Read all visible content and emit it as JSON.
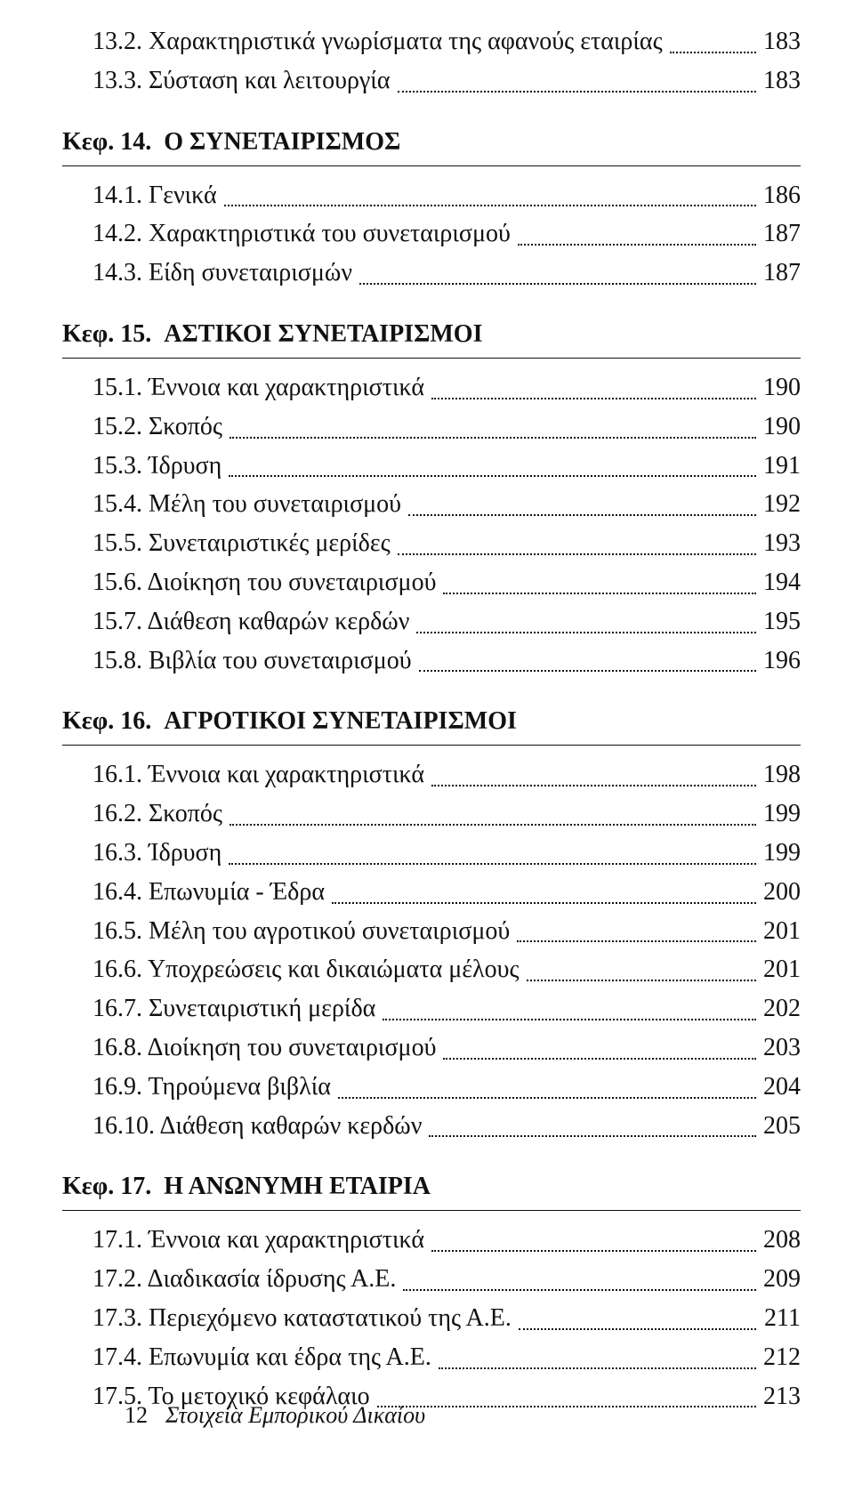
{
  "colors": {
    "text": "#111",
    "background": "#ffffff"
  },
  "typography": {
    "font_family": "Times New Roman",
    "body_fontsize": 28,
    "heading_fontsize": 28,
    "heading_weight": "bold"
  },
  "sections": [
    {
      "type": "entries",
      "entries": [
        {
          "label": "13.2. Χαρακτηριστικά γνωρίσματα της αφανούς εταιρίας",
          "page": "183"
        },
        {
          "label": "13.3. Σύσταση και λειτουργία",
          "page": "183"
        }
      ]
    },
    {
      "type": "chapter",
      "chap_label": "Κεφ. 14.",
      "chap_title": "Ο ΣΥΝΕΤΑΙΡΙΣΜΟΣ",
      "entries": [
        {
          "label": "14.1. Γενικά",
          "page": "186"
        },
        {
          "label": "14.2. Χαρακτηριστικά του συνεταιρισμού",
          "page": "187"
        },
        {
          "label": "14.3. Είδη συνεταιρισμών",
          "page": "187"
        }
      ]
    },
    {
      "type": "chapter",
      "chap_label": "Κεφ. 15.",
      "chap_title": "ΑΣΤΙΚΟΙ ΣΥΝΕΤΑΙΡΙΣΜΟΙ",
      "entries": [
        {
          "label": "15.1. Έννοια και χαρακτηριστικά",
          "page": "190"
        },
        {
          "label": "15.2. Σκοπός",
          "page": "190"
        },
        {
          "label": "15.3. Ίδρυση",
          "page": "191"
        },
        {
          "label": "15.4. Μέλη του συνεταιρισμού",
          "page": "192"
        },
        {
          "label": "15.5. Συνεταιριστικές μερίδες",
          "page": "193"
        },
        {
          "label": "15.6. Διοίκηση του συνεταιρισμού",
          "page": "194"
        },
        {
          "label": "15.7. Διάθεση καθαρών κερδών",
          "page": "195"
        },
        {
          "label": "15.8. Βιβλία του συνεταιρισμού",
          "page": "196"
        }
      ]
    },
    {
      "type": "chapter",
      "chap_label": "Κεφ. 16.",
      "chap_title": "ΑΓΡΟΤΙΚΟΙ ΣΥΝΕΤΑΙΡΙΣΜΟΙ",
      "entries": [
        {
          "label": "16.1. Έννοια και χαρακτηριστικά",
          "page": "198"
        },
        {
          "label": "16.2. Σκοπός",
          "page": "199"
        },
        {
          "label": "16.3. Ίδρυση",
          "page": "199"
        },
        {
          "label": "16.4. Επωνυμία - Έδρα",
          "page": "200"
        },
        {
          "label": "16.5. Μέλη του αγροτικού συνεταιρισμού",
          "page": "201"
        },
        {
          "label": "16.6. Υποχρεώσεις και δικαιώματα μέλους",
          "page": "201"
        },
        {
          "label": "16.7. Συνεταιριστική μερίδα",
          "page": "202"
        },
        {
          "label": "16.8. Διοίκηση του συνεταιρισμού",
          "page": "203"
        },
        {
          "label": "16.9. Τηρούμενα βιβλία",
          "page": "204"
        },
        {
          "label": "16.10. Διάθεση καθαρών κερδών",
          "page": "205"
        }
      ]
    },
    {
      "type": "chapter",
      "chap_label": "Κεφ. 17.",
      "chap_title": "Η ΑΝΩΝΥΜΗ ΕΤΑΙΡΙΑ",
      "entries": [
        {
          "label": "17.1. Έννοια και χαρακτηριστικά",
          "page": "208"
        },
        {
          "label": "17.2. Διαδικασία ίδρυσης Α.Ε.",
          "page": "209"
        },
        {
          "label": "17.3. Περιεχόμενο καταστατικού της Α.Ε.",
          "page": "211"
        },
        {
          "label": "17.4. Επωνυμία και έδρα της Α.Ε.",
          "page": "212"
        },
        {
          "label": "17.5. Το μετοχικό κεφάλαιο",
          "page": "213"
        }
      ]
    }
  ],
  "footer": {
    "page_number": "12",
    "book_title": "Στοιχεία Εμπορικού Δικαίου"
  }
}
